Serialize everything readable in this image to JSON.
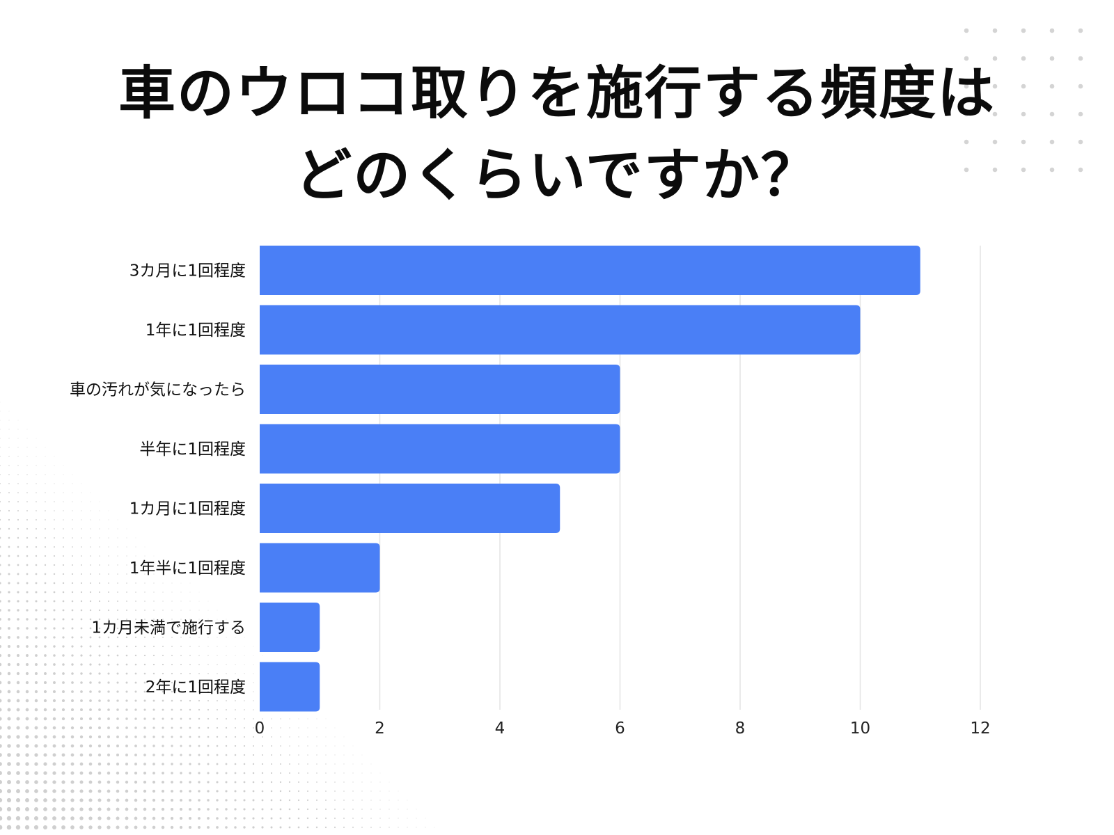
{
  "title_lines": [
    "車のウロコ取りを施行する頻度は",
    "どのくらいですか？"
  ],
  "colors": {
    "bar": "#4a7ff6",
    "grid": "#e3e3e3",
    "background": "#ffffff",
    "dots": "#cfcfcf"
  },
  "chart_data": {
    "type": "bar",
    "orientation": "horizontal",
    "title": "車のウロコ取りを施行する頻度はどのくらいですか？",
    "categories": [
      "3カ月に1回程度",
      "1年に1回程度",
      "車の汚れが気になったら",
      "半年に1回程度",
      "1カ月に1回程度",
      "1年半に1回程度",
      "1カ月未満で施行する",
      "2年に1回程度"
    ],
    "values": [
      11,
      10,
      6,
      6,
      5,
      2,
      1,
      1
    ],
    "xlim": [
      0,
      12
    ],
    "xticks": [
      0,
      2,
      4,
      6,
      8,
      10,
      12
    ],
    "xlabel": "",
    "ylabel": "",
    "grid": true,
    "legend": "none"
  }
}
